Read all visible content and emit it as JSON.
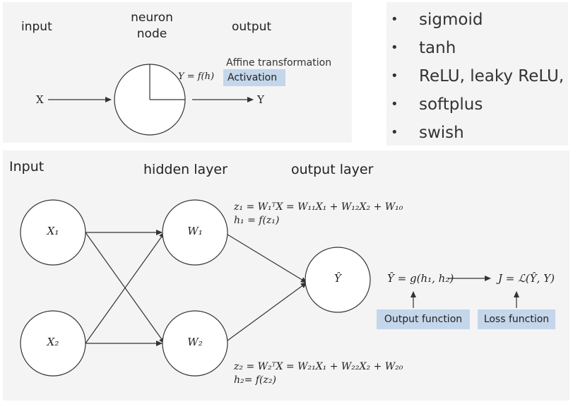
{
  "neuron_panel": {
    "input_label": "input",
    "node_label_line1": "neuron",
    "node_label_line2": "node",
    "output_label": "output",
    "affine_label": "Affine transformation",
    "activation_label": "Activation",
    "function_label": "Y = f(h)",
    "x_label": "X",
    "y_label": "Y"
  },
  "activation_functions": [
    "sigmoid",
    "tanh",
    "ReLU, leaky ReLU,",
    "softplus",
    "swish"
  ],
  "network_panel": {
    "input_title": "Input",
    "hidden_title": "hidden layer",
    "output_title": "output layer",
    "nodes": {
      "x1": "X₁",
      "x2": "X₂",
      "w1": "W₁",
      "w2": "W₂",
      "yhat": "Ŷ"
    },
    "equations": {
      "z1": "z₁ = W₁ᵀX = W₁₁X₁ + W₁₂X₂ + W₁₀",
      "h1": "h₁ = f(z₁)",
      "z2": "z₂ = W₂ᵀX = W₂₁X₁ + W₂₂X₂ + W₂₀",
      "h2": "h₂= f(z₂)",
      "yhat": "Ŷ = g(h₁, h₂)",
      "loss": "J = ℒ(Ŷ, Y)"
    },
    "output_function_label": "Output function",
    "loss_function_label": "Loss function"
  },
  "colors": {
    "panel_bg": "#f4f4f4",
    "highlight": "#c4d6ea",
    "stroke": "#333333"
  }
}
